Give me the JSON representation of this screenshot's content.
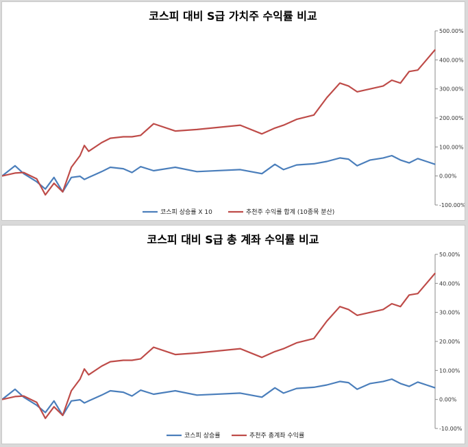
{
  "chart_data": [
    {
      "type": "line",
      "title": "코스피 대비 S급 가치주 수익률 비교",
      "xlabel": "",
      "ylabel": "",
      "ylim": [
        -100,
        500
      ],
      "ytick_labels": [
        "500.00%",
        "400.00%",
        "300.00%",
        "200.00%",
        "100.00%",
        "0.00%",
        "-100.00%"
      ],
      "legend_position": "bottom",
      "grid": false,
      "x": [
        0,
        3,
        5,
        8,
        10,
        12,
        14,
        16,
        18,
        19,
        20,
        23,
        25,
        28,
        30,
        32,
        35,
        40,
        45,
        55,
        60,
        63,
        65,
        68,
        72,
        75,
        78,
        80,
        82,
        85,
        88,
        90,
        92,
        94,
        96,
        98,
        100
      ],
      "series": [
        {
          "name": "코스피 상승률 X 10",
          "color": "#4a7ebb",
          "values": [
            0,
            35,
            8,
            -20,
            -45,
            -5,
            -55,
            -5,
            -1,
            -12,
            -5,
            15,
            30,
            25,
            12,
            32,
            18,
            30,
            15,
            22,
            8,
            40,
            22,
            38,
            42,
            50,
            62,
            58,
            35,
            55,
            62,
            70,
            55,
            45,
            60,
            50,
            40
          ]
        },
        {
          "name": "추천주 수익률 합계 (10종목 분산)",
          "color": "#be4b48",
          "values": [
            0,
            10,
            12,
            -10,
            -65,
            -25,
            -55,
            30,
            70,
            105,
            85,
            115,
            130,
            135,
            135,
            140,
            180,
            155,
            160,
            175,
            145,
            165,
            175,
            195,
            210,
            270,
            320,
            310,
            290,
            300,
            310,
            330,
            320,
            360,
            365,
            400,
            435
          ]
        }
      ]
    },
    {
      "type": "line",
      "title": "코스피 대비 S급 총 계좌 수익률 비교",
      "xlabel": "",
      "ylabel": "",
      "ylim": [
        -10,
        50
      ],
      "ytick_labels": [
        "50.00%",
        "40.00%",
        "30.00%",
        "20.00%",
        "10.00%",
        "0.00%",
        "-10.00%"
      ],
      "legend_position": "bottom",
      "grid": false,
      "x": [
        0,
        3,
        5,
        8,
        10,
        12,
        14,
        16,
        18,
        19,
        20,
        23,
        25,
        28,
        30,
        32,
        35,
        40,
        45,
        55,
        60,
        63,
        65,
        68,
        72,
        75,
        78,
        80,
        82,
        85,
        88,
        90,
        92,
        94,
        96,
        98,
        100
      ],
      "series": [
        {
          "name": "코스피 상승률",
          "color": "#4a7ebb",
          "values": [
            0,
            3.5,
            0.8,
            -2,
            -4.5,
            -0.5,
            -5.5,
            -0.5,
            -0.1,
            -1.2,
            -0.5,
            1.5,
            3,
            2.5,
            1.2,
            3.2,
            1.8,
            3,
            1.5,
            2.2,
            0.8,
            4,
            2.2,
            3.8,
            4.2,
            5,
            6.2,
            5.8,
            3.5,
            5.5,
            6.2,
            7,
            5.5,
            4.5,
            6,
            5,
            4
          ]
        },
        {
          "name": "추천주 총계좌 수익률",
          "color": "#be4b48",
          "values": [
            0,
            1,
            1.2,
            -1,
            -6.5,
            -2.5,
            -5.5,
            3,
            7,
            10.5,
            8.5,
            11.5,
            13,
            13.5,
            13.5,
            14,
            18,
            15.5,
            16,
            17.5,
            14.5,
            16.5,
            17.5,
            19.5,
            21,
            27,
            32,
            31,
            29,
            30,
            31,
            33,
            32,
            36,
            36.5,
            40,
            43.5
          ]
        }
      ]
    }
  ]
}
